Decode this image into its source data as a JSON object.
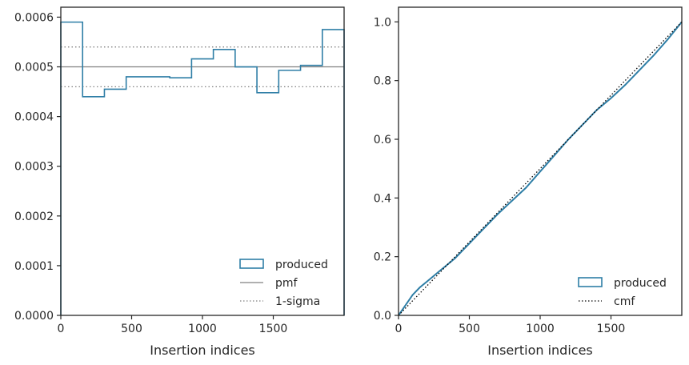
{
  "colors": {
    "produced": "#2e7ea6",
    "reference": "#808080",
    "cmf": "#000000",
    "axes": "#262626"
  },
  "chart_data": [
    {
      "type": "histogram",
      "xlabel": "Insertion indices",
      "ylabel": "",
      "xlim": [
        0,
        2000
      ],
      "ylim": [
        0,
        0.00062
      ],
      "xticks": [
        {
          "v": 0,
          "label": "0"
        },
        {
          "v": 500,
          "label": "500"
        },
        {
          "v": 1000,
          "label": "1000"
        },
        {
          "v": 1500,
          "label": "1500"
        }
      ],
      "yticks": [
        {
          "v": 0,
          "label": "0.0000"
        },
        {
          "v": 0.0001,
          "label": "0.0001"
        },
        {
          "v": 0.0002,
          "label": "0.0002"
        },
        {
          "v": 0.0003,
          "label": "0.0003"
        },
        {
          "v": 0.0004,
          "label": "0.0004"
        },
        {
          "v": 0.0005,
          "label": "0.0005"
        },
        {
          "v": 0.0006,
          "label": "0.0006"
        }
      ],
      "bin_edges": [
        0,
        153.8,
        307.7,
        461.5,
        615.4,
        769.2,
        923.1,
        1076.9,
        1230.8,
        1384.6,
        1538.5,
        1692.3,
        1846.2,
        2000
      ],
      "values": [
        0.00059,
        0.00044,
        0.000455,
        0.00048,
        0.00048,
        0.000478,
        0.000516,
        0.000535,
        0.0005,
        0.000448,
        0.000493,
        0.000503,
        0.000575
      ],
      "pmf": 0.0005,
      "sigma_band": [
        0.00046,
        0.00054
      ],
      "legend": [
        {
          "label": "produced",
          "kind": "patch",
          "color": "#2e7ea6"
        },
        {
          "label": "pmf",
          "kind": "solid",
          "color": "#808080"
        },
        {
          "label": "1-sigma",
          "kind": "dotted",
          "color": "#808080"
        }
      ],
      "legend_position": "lower-right"
    },
    {
      "type": "line",
      "xlabel": "Insertion indices",
      "ylabel": "",
      "xlim": [
        0,
        2000
      ],
      "ylim": [
        0,
        1.05
      ],
      "xticks": [
        {
          "v": 0,
          "label": "0"
        },
        {
          "v": 500,
          "label": "500"
        },
        {
          "v": 1000,
          "label": "1000"
        },
        {
          "v": 1500,
          "label": "1500"
        }
      ],
      "yticks": [
        {
          "v": 0,
          "label": "0.0"
        },
        {
          "v": 0.2,
          "label": "0.2"
        },
        {
          "v": 0.4,
          "label": "0.4"
        },
        {
          "v": 0.6,
          "label": "0.6"
        },
        {
          "v": 0.8,
          "label": "0.8"
        },
        {
          "v": 1.0,
          "label": "1.0"
        }
      ],
      "series": [
        {
          "name": "produced",
          "style": "solid",
          "color": "#2e7ea6",
          "x": [
            0,
            50,
            100,
            150,
            200,
            250,
            300,
            350,
            400,
            450,
            500,
            600,
            700,
            800,
            900,
            1000,
            1100,
            1200,
            1300,
            1400,
            1500,
            1600,
            1700,
            1800,
            1900,
            2000
          ],
          "y": [
            0,
            0.035,
            0.07,
            0.095,
            0.115,
            0.135,
            0.155,
            0.175,
            0.195,
            0.22,
            0.245,
            0.295,
            0.345,
            0.39,
            0.435,
            0.49,
            0.545,
            0.6,
            0.65,
            0.7,
            0.74,
            0.785,
            0.835,
            0.885,
            0.94,
            1.0
          ]
        },
        {
          "name": "cmf",
          "style": "dotted",
          "color": "#000000",
          "x": [
            0,
            2000
          ],
          "y": [
            0,
            1.0
          ]
        }
      ],
      "legend": [
        {
          "label": "produced",
          "kind": "patch",
          "color": "#2e7ea6"
        },
        {
          "label": "cmf",
          "kind": "dotted",
          "color": "#000000"
        }
      ],
      "legend_position": "lower-right"
    }
  ]
}
